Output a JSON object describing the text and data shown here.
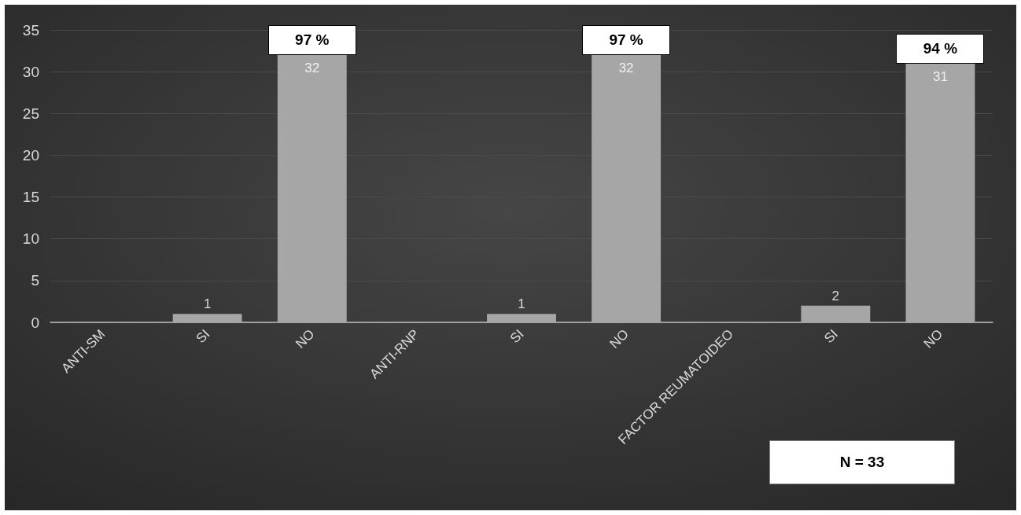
{
  "chart_data": {
    "type": "bar",
    "categories": [
      "ANTI-SM",
      "SI",
      "NO",
      "ANTI-RNP",
      "SI",
      "NO",
      "FACTOR REUMATOIDEO",
      "SI",
      "NO"
    ],
    "values": [
      null,
      1,
      32,
      null,
      1,
      32,
      null,
      2,
      31
    ],
    "color": "#a6a6a6",
    "ylim": [
      0,
      35
    ],
    "yticks": [
      0,
      5,
      10,
      15,
      20,
      25,
      30,
      35
    ],
    "grid": "y",
    "data_labels": true,
    "annotations": [
      "97 %",
      "97 %",
      "94 %",
      "N = 33"
    ]
  }
}
